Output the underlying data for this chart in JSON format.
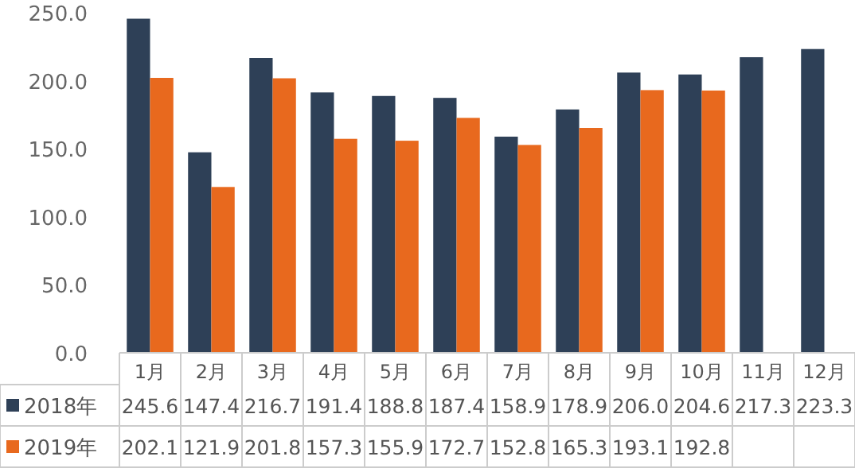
{
  "chart_data": {
    "type": "bar",
    "categories": [
      "1月",
      "2月",
      "3月",
      "4月",
      "5月",
      "6月",
      "7月",
      "8月",
      "9月",
      "10月",
      "11月",
      "12月"
    ],
    "series": [
      {
        "name": "2018年",
        "color": "#2e4057",
        "values": [
          245.6,
          147.4,
          216.7,
          191.4,
          188.8,
          187.4,
          158.9,
          178.9,
          206.0,
          204.6,
          217.3,
          223.3
        ],
        "value_labels": [
          "245.6",
          "147.4",
          "216.7",
          "191.4",
          "188.8",
          "187.4",
          "158.9",
          "178.9",
          "206.0",
          "204.6",
          "217.3",
          "223.3"
        ]
      },
      {
        "name": "2019年",
        "color": "#e8691e",
        "values": [
          202.1,
          121.9,
          201.8,
          157.3,
          155.9,
          172.7,
          152.8,
          165.3,
          193.1,
          192.8,
          null,
          null
        ],
        "value_labels": [
          "202.1",
          "121.9",
          "201.8",
          "157.3",
          "155.9",
          "172.7",
          "152.8",
          "165.3",
          "193.1",
          "192.8",
          null,
          null
        ]
      }
    ],
    "ylim": [
      0,
      250
    ],
    "yticks": [
      {
        "value": 0,
        "label": "0.0"
      },
      {
        "value": 50,
        "label": "50.0"
      },
      {
        "value": 100,
        "label": "100.0"
      },
      {
        "value": 150,
        "label": "150.0"
      },
      {
        "value": 200,
        "label": "200.0"
      },
      {
        "value": 250,
        "label": "250.0"
      }
    ],
    "legend": "bottom",
    "grid": false
  }
}
